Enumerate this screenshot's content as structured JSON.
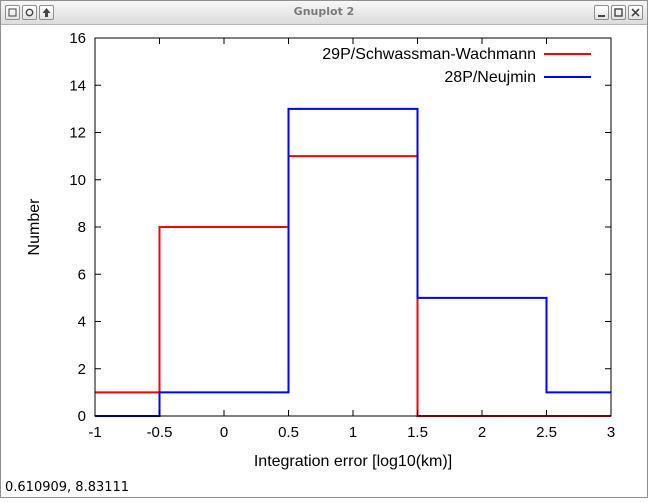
{
  "window": {
    "title": "Gnuplot 2",
    "buttons": {
      "menu": "",
      "sticky": "",
      "up": "",
      "minimize": "",
      "maximize": "",
      "close": ""
    }
  },
  "status": {
    "coordinates": "0.610909,  8.83111"
  },
  "colors": {
    "series1": "#ff0000",
    "series2": "#0000ff",
    "frame": "#000000"
  },
  "chart_data": {
    "type": "line",
    "style": "steps",
    "title": "",
    "xlabel": "Integration error [log10(km)]",
    "ylabel": "Number",
    "xlim": [
      -1,
      3
    ],
    "ylim": [
      0,
      16
    ],
    "xticks": [
      "-1",
      "-0.5",
      "0",
      "0.5",
      "1",
      "1.5",
      "2",
      "2.5",
      "3"
    ],
    "yticks": [
      "0",
      "2",
      "4",
      "6",
      "8",
      "10",
      "12",
      "14",
      "16"
    ],
    "legend_position": "top-right",
    "series": [
      {
        "name": "29P/Schwassman-Wachmann",
        "color": "#ff0000",
        "bins": [
          [
            -1,
            -0.5,
            1
          ],
          [
            -0.5,
            0.5,
            8
          ],
          [
            0.5,
            1.5,
            11
          ],
          [
            1.5,
            2.5,
            0
          ],
          [
            2.5,
            3,
            0
          ]
        ]
      },
      {
        "name": "28P/Neujmin",
        "color": "#0000ff",
        "bins": [
          [
            -1,
            -0.5,
            0
          ],
          [
            -0.5,
            0.5,
            1
          ],
          [
            0.5,
            1.5,
            13
          ],
          [
            1.5,
            2.5,
            5
          ],
          [
            2.5,
            3,
            1
          ]
        ]
      }
    ]
  }
}
